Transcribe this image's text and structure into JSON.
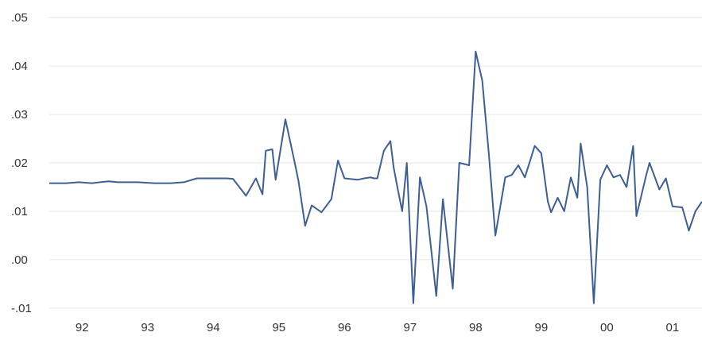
{
  "chart_data": {
    "type": "line",
    "title": "",
    "xlabel": "",
    "ylabel": "",
    "xlim": [
      1991.55,
      2001.5
    ],
    "ylim": [
      -0.012,
      0.052
    ],
    "grid": true,
    "legend": "none",
    "line_color": "#3d5f94",
    "x_ticks": [
      {
        "value": 1992.05,
        "label": "92"
      },
      {
        "value": 1993.05,
        "label": "93"
      },
      {
        "value": 1994.05,
        "label": "94"
      },
      {
        "value": 1995.05,
        "label": "95"
      },
      {
        "value": 1996.05,
        "label": "96"
      },
      {
        "value": 1997.05,
        "label": "97"
      },
      {
        "value": 1998.05,
        "label": "98"
      },
      {
        "value": 1999.05,
        "label": "99"
      },
      {
        "value": 2000.05,
        "label": "00"
      },
      {
        "value": 2001.05,
        "label": "01"
      }
    ],
    "y_ticks": [
      {
        "value": 0.05,
        "label": ".05"
      },
      {
        "value": 0.04,
        "label": ".04"
      },
      {
        "value": 0.03,
        "label": ".03"
      },
      {
        "value": 0.02,
        "label": ".02"
      },
      {
        "value": 0.01,
        "label": ".01"
      },
      {
        "value": 0.0,
        "label": ".00"
      },
      {
        "value": -0.01,
        "label": "-.01"
      }
    ],
    "series": [
      {
        "x": [
          1991.55,
          1991.8,
          1992.0,
          1992.2,
          1992.45,
          1992.6,
          1992.9,
          1993.15,
          1993.4,
          1993.6,
          1993.8,
          1993.9,
          1994.1,
          1994.25,
          1994.35,
          1994.55,
          1994.7,
          1994.8,
          1994.85,
          1994.95,
          1995.0,
          1995.15,
          1995.3,
          1995.35,
          1995.45,
          1995.55,
          1995.7,
          1995.85,
          1995.95,
          1996.05,
          1996.25,
          1996.35,
          1996.45,
          1996.5,
          1996.55,
          1996.65,
          1996.75,
          1996.8,
          1996.87,
          1996.93,
          1997.0,
          1997.1,
          1997.2,
          1997.3,
          1997.45,
          1997.55,
          1997.7,
          1997.8,
          1997.95,
          1998.05,
          1998.15,
          1998.25,
          1998.35,
          1998.5,
          1998.6,
          1998.7,
          1998.8,
          1998.95,
          1999.05,
          1999.15,
          1999.2,
          1999.3,
          1999.4,
          1999.5,
          1999.6,
          1999.65,
          1999.75,
          1999.85,
          1999.95,
          2000.05,
          2000.15,
          2000.25,
          2000.35,
          2000.45,
          2000.5,
          2000.65,
          2000.7,
          2000.85,
          2000.95,
          2001.05,
          2001.2,
          2001.3,
          2001.4,
          2001.5
        ],
        "y": [
          0.0158,
          0.0158,
          0.016,
          0.0158,
          0.0162,
          0.016,
          0.016,
          0.0158,
          0.0158,
          0.016,
          0.0168,
          0.0168,
          0.0168,
          0.0168,
          0.0167,
          0.0132,
          0.0168,
          0.0135,
          0.0225,
          0.0228,
          0.0165,
          0.029,
          0.0195,
          0.0162,
          0.007,
          0.0112,
          0.0098,
          0.0125,
          0.0205,
          0.0168,
          0.0165,
          0.0168,
          0.017,
          0.0168,
          0.0168,
          0.0225,
          0.0245,
          0.019,
          0.014,
          0.01,
          0.02,
          -0.009,
          0.017,
          0.011,
          -0.0075,
          0.0125,
          -0.006,
          0.02,
          0.0195,
          0.043,
          0.037,
          0.022,
          0.005,
          0.017,
          0.0175,
          0.0195,
          0.017,
          0.0235,
          0.022,
          0.012,
          0.0098,
          0.0128,
          0.01,
          0.017,
          0.0128,
          0.024,
          0.015,
          -0.009,
          0.0165,
          0.0195,
          0.017,
          0.0175,
          0.015,
          0.0235,
          0.009,
          0.0175,
          0.02,
          0.0145,
          0.0168,
          0.011,
          0.0108,
          0.006,
          0.01,
          0.012
        ]
      }
    ]
  }
}
